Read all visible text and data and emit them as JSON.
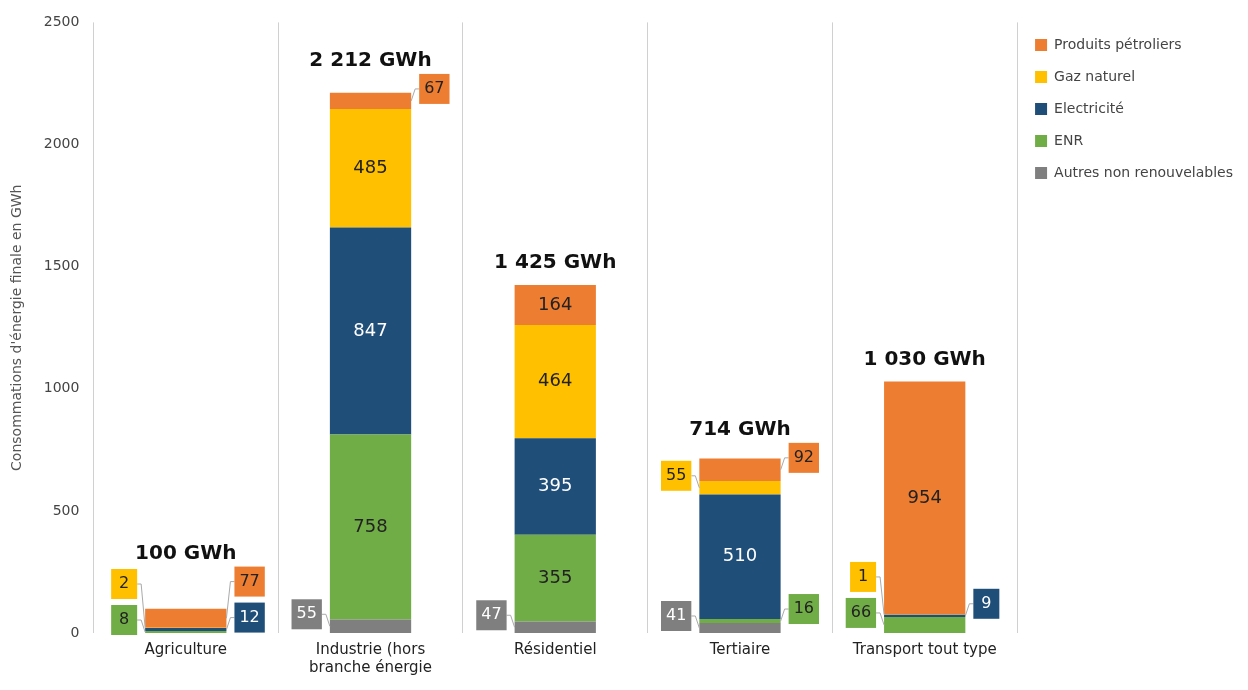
{
  "chart_data": {
    "type": "bar",
    "stacked": true,
    "ylabel": "Consommations d'énergie finale en GWh",
    "categories": [
      "Agriculture",
      "Industrie (hors branche énergie",
      "Résidentiel",
      "Tertiaire",
      "Transport tout type"
    ],
    "series": [
      {
        "name": "Autres non renouvelables",
        "color": "#7f7f7f",
        "values": [
          null,
          55,
          47,
          41,
          null
        ],
        "value_labels": [
          null,
          "55",
          "47",
          "41",
          null
        ]
      },
      {
        "name": "ENR",
        "color": "#70ad47",
        "values": [
          8,
          758,
          355,
          16,
          66
        ],
        "value_labels": [
          "8",
          "758",
          "355",
          "16",
          "66"
        ]
      },
      {
        "name": "Electricité",
        "color": "#1f4e79",
        "values": [
          12,
          847,
          395,
          510,
          9
        ],
        "value_labels": [
          "12",
          "847",
          "395",
          "510",
          "9"
        ]
      },
      {
        "name": "Gaz naturel",
        "color": "#ffc000",
        "values": [
          2,
          485,
          464,
          55,
          1
        ],
        "value_labels": [
          "2",
          "485",
          "464",
          "55",
          "1"
        ]
      },
      {
        "name": "Produits pétroliers",
        "color": "#ed7d31",
        "values": [
          77,
          67,
          164,
          92,
          954
        ],
        "value_labels": [
          "77",
          "67",
          "164",
          "92",
          "954"
        ]
      }
    ],
    "totals": [
      "100 GWh",
      "2 212 GWh",
      "1 425 GWh",
      "714 GWh",
      "1 030 GWh"
    ],
    "ylim": [
      0,
      2500
    ],
    "yticks": [
      0,
      500,
      1000,
      1500,
      2000,
      2500
    ],
    "grid": "x",
    "legend": "top right"
  }
}
